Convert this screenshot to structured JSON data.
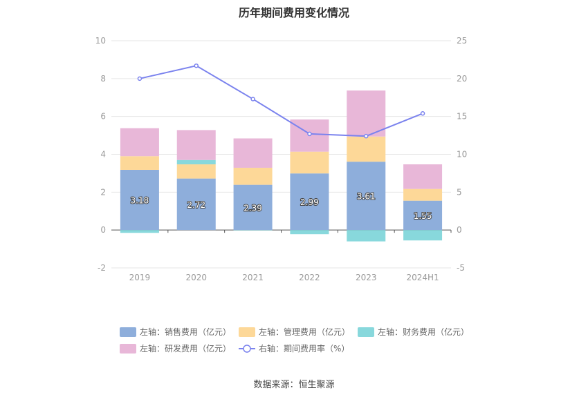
{
  "chart_data": {
    "type": "bar",
    "title": "历年期间费用变化情况",
    "categories": [
      "2019",
      "2020",
      "2021",
      "2022",
      "2023",
      "2024H1"
    ],
    "series": [
      {
        "name": "左轴：销售费用（亿元）",
        "axis": "left",
        "kind": "bar",
        "color": "#8eaedb",
        "values": [
          3.18,
          2.72,
          2.39,
          2.99,
          3.61,
          1.55
        ],
        "show_labels": true
      },
      {
        "name": "左轴：管理费用（亿元）",
        "axis": "left",
        "kind": "bar",
        "color": "#fdd898",
        "values": [
          0.72,
          0.75,
          0.9,
          1.15,
          1.33,
          0.62
        ]
      },
      {
        "name": "左轴：财务费用（亿元）",
        "axis": "left",
        "kind": "bar",
        "color": "#88d8dc",
        "values": [
          -0.15,
          0.23,
          -0.02,
          -0.22,
          -0.6,
          -0.55
        ]
      },
      {
        "name": "左轴：研发费用（亿元）",
        "axis": "left",
        "kind": "bar",
        "color": "#e8b7d8",
        "values": [
          1.48,
          1.58,
          1.55,
          1.7,
          2.43,
          1.3
        ]
      },
      {
        "name": "右轴：期间费用率（%）",
        "axis": "right",
        "kind": "line",
        "color": "#7b83ee",
        "values": [
          20.0,
          21.7,
          17.3,
          12.7,
          12.4,
          15.4
        ]
      }
    ],
    "y_left": {
      "min": -2,
      "max": 10,
      "ticks": [
        "-2",
        "0",
        "2",
        "4",
        "6",
        "8",
        "10"
      ]
    },
    "y_right": {
      "min": -5,
      "max": 25,
      "ticks": [
        "-5",
        "0",
        "5",
        "10",
        "15",
        "20",
        "25"
      ]
    },
    "legend_position": "bottom",
    "grid": true
  },
  "source_text": "数据来源：恒生聚源"
}
